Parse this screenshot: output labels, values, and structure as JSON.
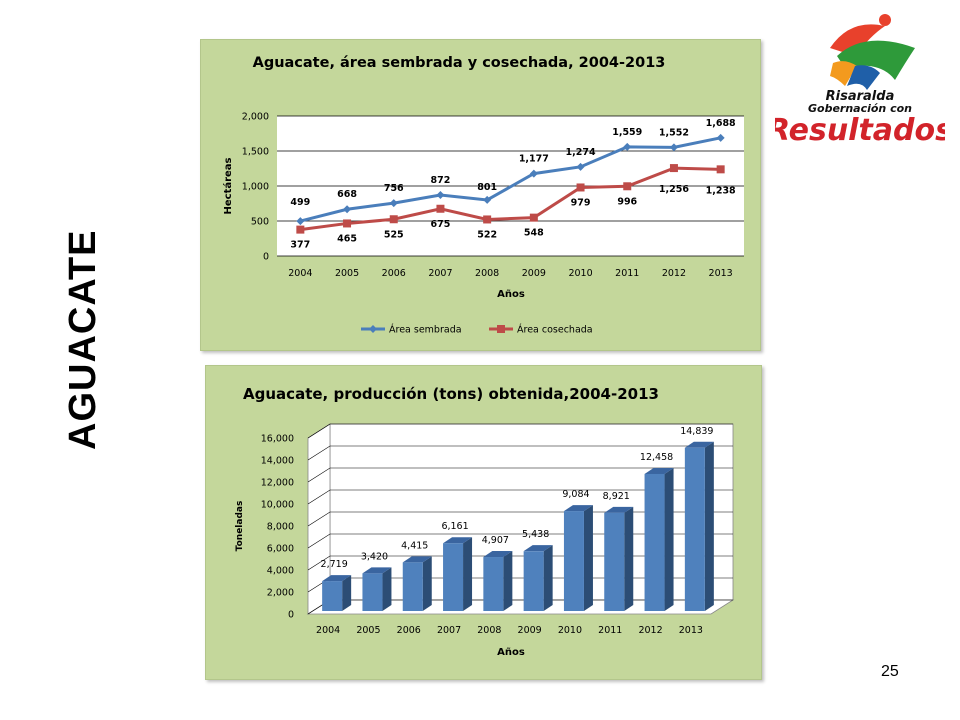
{
  "side_title": "AGUACATE",
  "page_number": "25",
  "logo": {
    "line1": "Risaralda",
    "line2": "Gobernación con",
    "line3": "Resultados"
  },
  "colors": {
    "panel_bg": "#c4d79b",
    "plot_bg": "#ffffff",
    "series1": "#4a7ebb",
    "series2": "#be4b48",
    "bar": "#4f81bd",
    "bar_dark": "#2c4d75"
  },
  "chart_data": [
    {
      "type": "line",
      "title": "Aguacate, área sembrada y cosechada, 2004-2013",
      "xlabel": "Años",
      "ylabel": "Hectáreas",
      "ylim": [
        0,
        2000
      ],
      "yticks": [
        "0",
        "500",
        "1,000",
        "1,500",
        "2,000"
      ],
      "categories": [
        "2004",
        "2005",
        "2006",
        "2007",
        "2008",
        "2009",
        "2010",
        "2011",
        "2012",
        "2013"
      ],
      "series": [
        {
          "name": "Área sembrada",
          "values": [
            499,
            668,
            756,
            872,
            801,
            1177,
            1274,
            1559,
            1552,
            1688
          ],
          "labels": [
            "499",
            "668",
            "756",
            "872",
            "801",
            "1,177",
            "1,274",
            "1,559",
            "1,552",
            "1,688"
          ]
        },
        {
          "name": "Área cosechada",
          "values": [
            377,
            465,
            525,
            675,
            522,
            548,
            979,
            996,
            1256,
            1238
          ],
          "labels": [
            "377",
            "465",
            "525",
            "675",
            "522",
            "548",
            "979",
            "996",
            "1,256",
            "1,238"
          ]
        }
      ],
      "legend": "bottom",
      "grid": true
    },
    {
      "type": "bar",
      "title": "Aguacate, producción (tons) obtenida,2004-2013",
      "xlabel": "Años",
      "ylabel": "Toneladas",
      "ylim": [
        0,
        16000
      ],
      "yticks": [
        "0",
        "2,000",
        "4,000",
        "6,000",
        "8,000",
        "10,000",
        "12,000",
        "14,000",
        "16,000"
      ],
      "categories": [
        "2004",
        "2005",
        "2006",
        "2007",
        "2008",
        "2009",
        "2010",
        "2011",
        "2012",
        "2013"
      ],
      "values": [
        2719,
        3420,
        4415,
        6161,
        4907,
        5438,
        9084,
        8921,
        12458,
        14839
      ],
      "labels": [
        "2,719",
        "3,420",
        "4,415",
        "6,161",
        "4,907",
        "5,438",
        "9,084",
        "8,921",
        "12,458",
        "14,839"
      ],
      "style": "3d",
      "grid": true
    }
  ]
}
